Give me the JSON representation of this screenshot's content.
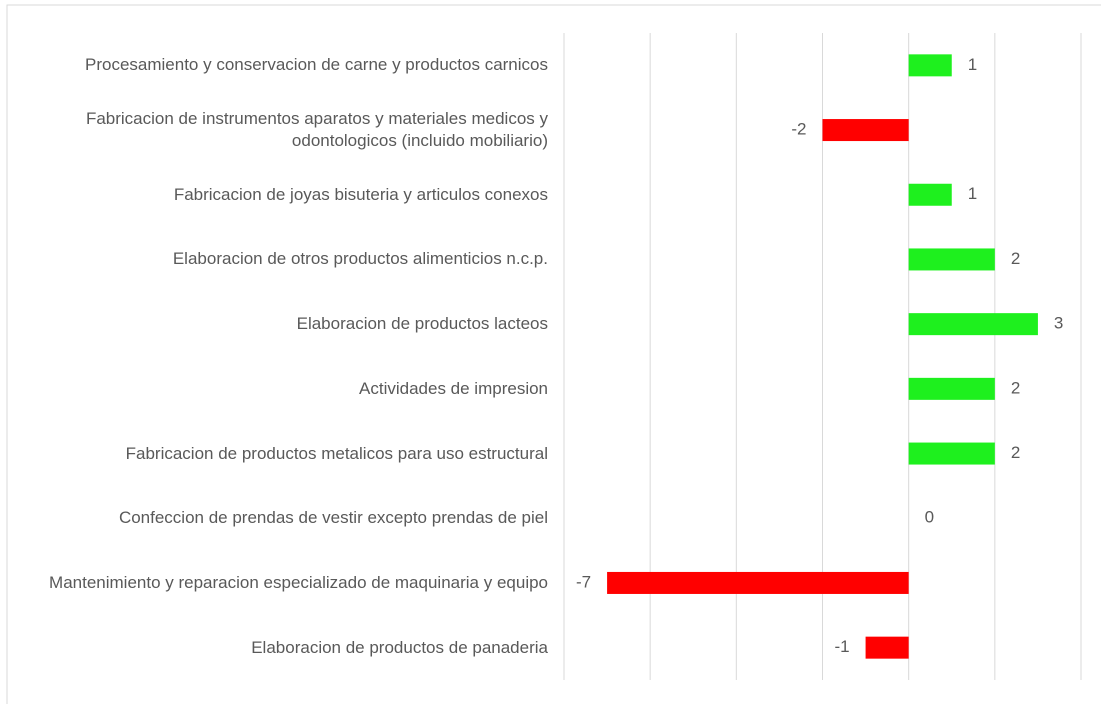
{
  "chart_data": {
    "type": "barh",
    "categories": [
      "Procesamiento y conservacion de carne y productos carnicos",
      "Fabricacion de instrumentos  aparatos y materiales medicos y odontologicos (incluido mobiliario)",
      "Fabricacion de joyas  bisuteria y articulos conexos",
      "Elaboracion de otros productos alimenticios n.c.p.",
      "Elaboracion de productos lacteos",
      "Actividades de impresion",
      "Fabricacion de productos metalicos para uso estructural",
      "Confeccion de prendas de vestir  excepto prendas de piel",
      "Mantenimiento y reparacion especializado de maquinaria y equipo",
      "Elaboracion de productos de panaderia"
    ],
    "values": [
      1,
      -2,
      1,
      2,
      3,
      2,
      2,
      0,
      -7,
      -1
    ],
    "positive_color": "#1ef01e",
    "negative_color": "#ff0000",
    "xlim": [
      -8,
      4
    ],
    "xticks": [
      -8,
      -6,
      -4,
      -2,
      0,
      2,
      4
    ],
    "grid": true
  }
}
